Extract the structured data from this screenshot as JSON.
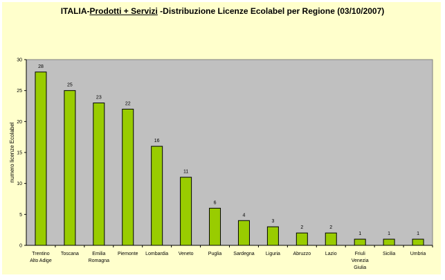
{
  "chart_data": {
    "type": "bar",
    "title_parts": [
      "ITALIA-",
      "Prodotti + Servizi",
      " -Distribuzione Licenze Ecolabel per Regione (03/10/2007)"
    ],
    "xlabel": "",
    "ylabel": "numero licenze Ecolabel",
    "ylim": [
      0,
      30
    ],
    "yticks": [
      0,
      5,
      10,
      15,
      20,
      25,
      30
    ],
    "grid": false,
    "legend": "none",
    "categories": [
      [
        "Trentino",
        "Alto Adige"
      ],
      [
        "Toscana"
      ],
      [
        "Emilia",
        "Romagna"
      ],
      [
        "Piemonte"
      ],
      [
        "Lombardia"
      ],
      [
        "Veneto"
      ],
      [
        "Puglia"
      ],
      [
        "Sardegna"
      ],
      [
        "Liguria"
      ],
      [
        "Abruzzo"
      ],
      [
        "Lazio"
      ],
      [
        "Friuli",
        "Venezia",
        "Giulia"
      ],
      [
        "Sicilia"
      ],
      [
        "Umbria"
      ]
    ],
    "values": [
      28,
      25,
      23,
      22,
      16,
      11,
      6,
      4,
      3,
      2,
      2,
      1,
      1,
      1
    ],
    "colors": {
      "bar": "#99cc00",
      "plot_bg": "#c0c0c0",
      "chart_bg": "#ffffcc"
    }
  }
}
